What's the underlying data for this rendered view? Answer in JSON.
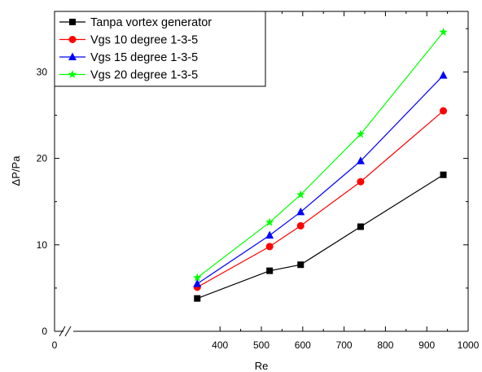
{
  "chart_data": {
    "type": "line",
    "xlabel": "Re",
    "ylabel": "ΔP/Pa",
    "xlim": [
      0,
      1000
    ],
    "ylim": [
      0,
      37
    ],
    "x_axis_break": true,
    "x_ticks": [
      0,
      400,
      500,
      600,
      700,
      800,
      900,
      1000
    ],
    "y_ticks": [
      0,
      10,
      20,
      30
    ],
    "grid": false,
    "legend_position": "top-left",
    "x": [
      345,
      520,
      595,
      740,
      940
    ],
    "series": [
      {
        "name": "Tanpa vortex generator",
        "color": "#000000",
        "marker": "square",
        "values": [
          3.8,
          7.0,
          7.7,
          12.1,
          18.1
        ]
      },
      {
        "name": "Vgs 10 degree 1-3-5",
        "color": "#ff0000",
        "marker": "circle",
        "values": [
          5.1,
          9.8,
          12.2,
          17.3,
          25.5
        ]
      },
      {
        "name": "Vgs 15 degree 1-3-5",
        "color": "#0000ff",
        "marker": "triangle",
        "values": [
          5.5,
          11.1,
          13.8,
          19.7,
          29.6
        ]
      },
      {
        "name": "Vgs 20 degree 1-3-5",
        "color": "#00ff00",
        "marker": "star",
        "values": [
          6.2,
          12.6,
          15.8,
          22.8,
          34.6
        ]
      }
    ]
  }
}
